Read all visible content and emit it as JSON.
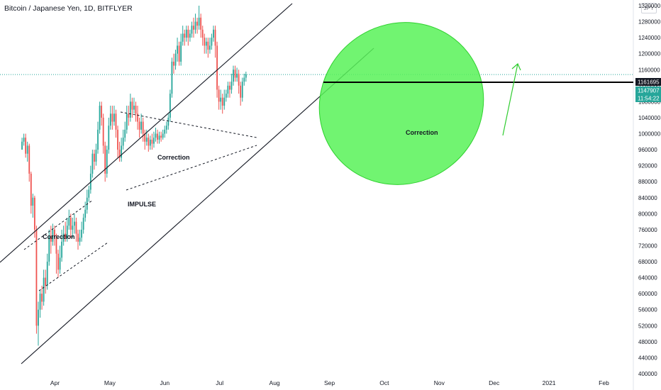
{
  "header": {
    "symbol": "Bitcoin / Japanese Yen, 1D, BITFLYER",
    "currency": "JPY"
  },
  "chart_data": {
    "type": "candlestick",
    "title": "Bitcoin / Japanese Yen, 1D, BITFLYER",
    "ylim": [
      400000,
      1340000
    ],
    "y_ticks": [
      1320000,
      1280000,
      1240000,
      1200000,
      1160000,
      1120000,
      1080000,
      1040000,
      1000000,
      960000,
      920000,
      880000,
      840000,
      800000,
      760000,
      720000,
      680000,
      640000,
      600000,
      560000,
      520000,
      480000,
      440000,
      400000
    ],
    "x_ticks": [
      "Apr",
      "May",
      "Jun",
      "Jul",
      "Aug",
      "Sep",
      "Oct",
      "Nov",
      "Dec",
      "2021",
      "Feb"
    ],
    "grid": false,
    "price_tags": [
      {
        "label": "1161695",
        "value": 1161695,
        "style": "black"
      },
      {
        "label": "1147907",
        "value": 1147907,
        "style": "teal"
      },
      {
        "label": "11:54:22",
        "value": 1133500,
        "style": "teal"
      }
    ],
    "annotations": [
      "Correction",
      "Correction",
      "IMPULSE",
      "Correction"
    ],
    "horizontal_line": 1161695,
    "series": [
      {
        "kind": "ohlc",
        "start_month": 2.9,
        "step_months": 0.0329,
        "points": [
          [
            960000,
            980000,
            990000,
            960000
          ],
          [
            980000,
            990000,
            1000000,
            970000
          ],
          [
            990000,
            950000,
            1000000,
            940000
          ],
          [
            950000,
            970000,
            980000,
            930000
          ],
          [
            970000,
            900000,
            975000,
            880000
          ],
          [
            900000,
            820000,
            905000,
            800000
          ],
          [
            820000,
            840000,
            850000,
            790000
          ],
          [
            840000,
            760000,
            845000,
            740000
          ],
          [
            760000,
            520000,
            770000,
            500000
          ],
          [
            520000,
            560000,
            580000,
            470000
          ],
          [
            560000,
            600000,
            610000,
            540000
          ],
          [
            600000,
            580000,
            620000,
            560000
          ],
          [
            580000,
            640000,
            660000,
            570000
          ],
          [
            640000,
            620000,
            660000,
            600000
          ],
          [
            620000,
            680000,
            700000,
            610000
          ],
          [
            680000,
            740000,
            760000,
            670000
          ],
          [
            740000,
            730000,
            770000,
            700000
          ],
          [
            730000,
            760000,
            775000,
            720000
          ],
          [
            760000,
            740000,
            770000,
            720000
          ],
          [
            740000,
            700000,
            750000,
            650000
          ],
          [
            700000,
            660000,
            710000,
            640000
          ],
          [
            660000,
            690000,
            720000,
            650000
          ],
          [
            690000,
            730000,
            760000,
            680000
          ],
          [
            730000,
            750000,
            770000,
            720000
          ],
          [
            750000,
            740000,
            780000,
            730000
          ],
          [
            740000,
            770000,
            790000,
            730000
          ],
          [
            770000,
            790000,
            810000,
            760000
          ],
          [
            790000,
            760000,
            800000,
            740000
          ],
          [
            760000,
            770000,
            790000,
            740000
          ],
          [
            770000,
            780000,
            800000,
            750000
          ],
          [
            780000,
            750000,
            790000,
            730000
          ],
          [
            750000,
            730000,
            760000,
            710000
          ],
          [
            730000,
            740000,
            760000,
            720000
          ],
          [
            740000,
            760000,
            780000,
            730000
          ],
          [
            760000,
            790000,
            800000,
            750000
          ],
          [
            790000,
            810000,
            830000,
            780000
          ],
          [
            810000,
            840000,
            860000,
            800000
          ],
          [
            840000,
            860000,
            870000,
            830000
          ],
          [
            860000,
            900000,
            920000,
            850000
          ],
          [
            900000,
            950000,
            960000,
            890000
          ],
          [
            950000,
            930000,
            960000,
            910000
          ],
          [
            930000,
            960000,
            975000,
            920000
          ],
          [
            960000,
            1010000,
            1030000,
            950000
          ],
          [
            1010000,
            1070000,
            1080000,
            1000000
          ],
          [
            1070000,
            1040000,
            1080000,
            1020000
          ],
          [
            1040000,
            970000,
            1050000,
            950000
          ],
          [
            970000,
            900000,
            980000,
            880000
          ],
          [
            900000,
            960000,
            970000,
            890000
          ],
          [
            960000,
            1020000,
            1040000,
            950000
          ],
          [
            1020000,
            1050000,
            1070000,
            1010000
          ],
          [
            1050000,
            1030000,
            1070000,
            1010000
          ],
          [
            1030000,
            1050000,
            1070000,
            1020000
          ],
          [
            1050000,
            1010000,
            1060000,
            990000
          ],
          [
            1010000,
            960000,
            1020000,
            940000
          ],
          [
            960000,
            940000,
            980000,
            930000
          ],
          [
            940000,
            970000,
            990000,
            930000
          ],
          [
            970000,
            990000,
            1010000,
            960000
          ],
          [
            990000,
            1010000,
            1030000,
            980000
          ],
          [
            1010000,
            1050000,
            1070000,
            1000000
          ],
          [
            1050000,
            1040000,
            1070000,
            1020000
          ],
          [
            1040000,
            1080000,
            1100000,
            1030000
          ],
          [
            1080000,
            1060000,
            1090000,
            1040000
          ],
          [
            1060000,
            1070000,
            1090000,
            1050000
          ],
          [
            1070000,
            1050000,
            1080000,
            1030000
          ],
          [
            1050000,
            1030000,
            1070000,
            1010000
          ],
          [
            1030000,
            1010000,
            1040000,
            990000
          ],
          [
            1010000,
            1030000,
            1050000,
            1000000
          ],
          [
            1030000,
            1000000,
            1040000,
            980000
          ],
          [
            1000000,
            980000,
            1010000,
            960000
          ],
          [
            980000,
            990000,
            1010000,
            970000
          ],
          [
            990000,
            970000,
            1000000,
            955000
          ],
          [
            970000,
            985000,
            995000,
            960000
          ],
          [
            985000,
            975000,
            1000000,
            960000
          ],
          [
            975000,
            990000,
            1005000,
            965000
          ],
          [
            990000,
            1000000,
            1015000,
            980000
          ],
          [
            1000000,
            985000,
            1010000,
            975000
          ],
          [
            985000,
            995000,
            1005000,
            975000
          ],
          [
            995000,
            990000,
            1005000,
            980000
          ],
          [
            990000,
            1000000,
            1010000,
            985000
          ],
          [
            1000000,
            1010000,
            1020000,
            990000
          ],
          [
            1010000,
            1020000,
            1030000,
            1000000
          ],
          [
            1020000,
            1040000,
            1050000,
            1010000
          ],
          [
            1040000,
            1100000,
            1110000,
            1030000
          ],
          [
            1100000,
            1180000,
            1190000,
            1090000
          ],
          [
            1180000,
            1170000,
            1200000,
            1150000
          ],
          [
            1170000,
            1200000,
            1210000,
            1160000
          ],
          [
            1200000,
            1220000,
            1240000,
            1180000
          ],
          [
            1220000,
            1180000,
            1230000,
            1170000
          ],
          [
            1180000,
            1230000,
            1250000,
            1170000
          ],
          [
            1230000,
            1250000,
            1270000,
            1220000
          ],
          [
            1250000,
            1240000,
            1260000,
            1220000
          ],
          [
            1240000,
            1260000,
            1270000,
            1230000
          ],
          [
            1260000,
            1240000,
            1270000,
            1220000
          ],
          [
            1240000,
            1250000,
            1260000,
            1230000
          ],
          [
            1250000,
            1270000,
            1280000,
            1240000
          ],
          [
            1270000,
            1260000,
            1290000,
            1240000
          ],
          [
            1260000,
            1280000,
            1300000,
            1250000
          ],
          [
            1280000,
            1270000,
            1290000,
            1250000
          ],
          [
            1270000,
            1290000,
            1320000,
            1260000
          ],
          [
            1290000,
            1260000,
            1300000,
            1240000
          ],
          [
            1260000,
            1240000,
            1270000,
            1220000
          ],
          [
            1240000,
            1220000,
            1250000,
            1200000
          ],
          [
            1220000,
            1230000,
            1240000,
            1200000
          ],
          [
            1230000,
            1210000,
            1240000,
            1190000
          ],
          [
            1210000,
            1220000,
            1240000,
            1200000
          ],
          [
            1220000,
            1240000,
            1250000,
            1210000
          ],
          [
            1240000,
            1260000,
            1270000,
            1230000
          ],
          [
            1260000,
            1220000,
            1270000,
            1190000
          ],
          [
            1220000,
            1110000,
            1230000,
            1090000
          ],
          [
            1110000,
            1080000,
            1120000,
            1060000
          ],
          [
            1080000,
            1090000,
            1110000,
            1060000
          ],
          [
            1090000,
            1070000,
            1100000,
            1050000
          ],
          [
            1070000,
            1090000,
            1110000,
            1060000
          ],
          [
            1090000,
            1100000,
            1110000,
            1080000
          ],
          [
            1100000,
            1120000,
            1130000,
            1090000
          ],
          [
            1120000,
            1110000,
            1130000,
            1090000
          ],
          [
            1110000,
            1130000,
            1150000,
            1100000
          ],
          [
            1130000,
            1160000,
            1170000,
            1120000
          ],
          [
            1160000,
            1140000,
            1170000,
            1130000
          ],
          [
            1140000,
            1150000,
            1165000,
            1130000
          ],
          [
            1150000,
            1120000,
            1160000,
            1100000
          ],
          [
            1120000,
            1090000,
            1130000,
            1070000
          ],
          [
            1090000,
            1130000,
            1140000,
            1080000
          ],
          [
            1130000,
            1140000,
            1150000,
            1120000
          ],
          [
            1140000,
            1148000,
            1155000,
            1130000
          ]
        ]
      }
    ]
  }
}
